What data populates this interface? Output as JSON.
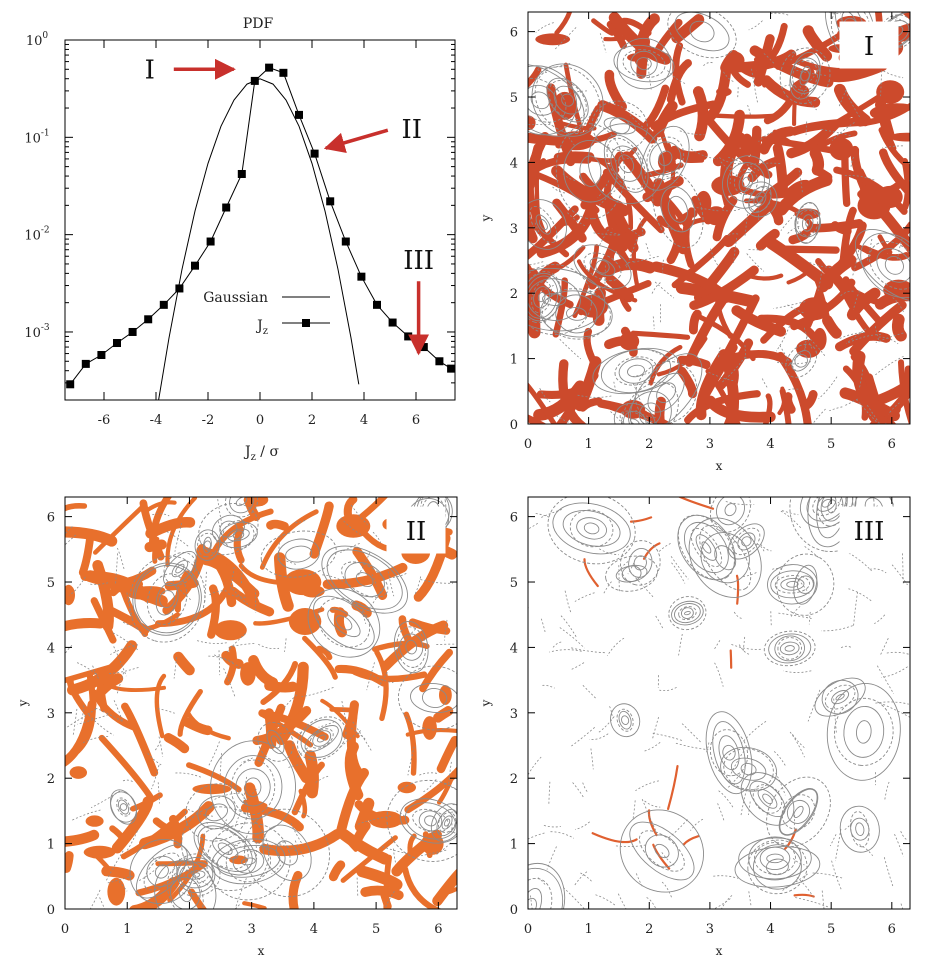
{
  "chart_data": [
    {
      "type": "line",
      "title": "PDF",
      "xlabel": "J_z / σ",
      "ylabel": "",
      "xlim": [
        -7.5,
        7.5
      ],
      "ylim": [
        0.0002,
        1
      ],
      "log_y": true,
      "grid": false,
      "legend_position": "center",
      "x_ticks": [
        "-6",
        "-4",
        "-2",
        "0",
        "2",
        "4",
        "6"
      ],
      "y_ticks": [
        {
          "value": 0.001,
          "base": "10",
          "exp": "-3"
        },
        {
          "value": 0.01,
          "base": "10",
          "exp": "-2"
        },
        {
          "value": 0.1,
          "base": "10",
          "exp": "-1"
        },
        {
          "value": 1,
          "base": "10",
          "exp": "0"
        }
      ],
      "series": [
        {
          "name": "Gaussian",
          "marker": "none",
          "x": [
            -3.9,
            -3.5,
            -3,
            -2.5,
            -2,
            -1.5,
            -1,
            -0.5,
            0,
            0.5,
            1,
            1.5,
            2,
            2.5,
            3,
            3.5,
            3.8
          ],
          "y": [
            0.0002,
            0.00087,
            0.0044,
            0.0175,
            0.054,
            0.13,
            0.242,
            0.352,
            0.399,
            0.352,
            0.242,
            0.13,
            0.054,
            0.0175,
            0.0044,
            0.00087,
            0.00029
          ]
        },
        {
          "name": "J",
          "name_sub": "z",
          "marker": "square",
          "x": [
            -7.3,
            -6.7,
            -6.1,
            -5.5,
            -4.9,
            -4.3,
            -3.7,
            -3.1,
            -2.5,
            -1.9,
            -1.3,
            -0.7,
            -0.2,
            0.35,
            0.9,
            1.5,
            2.1,
            2.7,
            3.3,
            3.9,
            4.5,
            5.1,
            5.7,
            6.3,
            6.9,
            7.35
          ],
          "y": [
            0.00029,
            0.00047,
            0.00058,
            0.00077,
            0.001,
            0.00135,
            0.0019,
            0.0028,
            0.0048,
            0.0085,
            0.019,
            0.042,
            0.38,
            0.52,
            0.46,
            0.17,
            0.068,
            0.022,
            0.0085,
            0.0037,
            0.0019,
            0.00125,
            0.0009,
            0.0007,
            0.0005,
            0.00042
          ]
        }
      ],
      "annotations": [
        {
          "label": "I",
          "x": -0.7,
          "y": 0.5,
          "color": "#c8302c"
        },
        {
          "label": "II",
          "x": 2.3,
          "y": 0.085,
          "color": "#c8302c"
        },
        {
          "label": "III",
          "x": 6.1,
          "y": 0.00055,
          "color": "#c8302c"
        }
      ]
    },
    {
      "type": "heatmap",
      "label": "I",
      "xlabel": "x",
      "ylabel": "y",
      "xlim": [
        0,
        6.3
      ],
      "ylim": [
        0,
        6.3
      ],
      "x_ticks": [
        "0",
        "1",
        "2",
        "3",
        "4",
        "5",
        "6"
      ],
      "y_ticks": [
        "0",
        "1",
        "2",
        "3",
        "4",
        "5",
        "6"
      ],
      "fill_color": "#cc4a2c",
      "fill_density": 0.55,
      "contour_color": "#8a8a8a"
    },
    {
      "type": "heatmap",
      "label": "II",
      "xlabel": "x",
      "ylabel": "y",
      "xlim": [
        0,
        6.3
      ],
      "ylim": [
        0,
        6.3
      ],
      "x_ticks": [
        "0",
        "1",
        "2",
        "3",
        "4",
        "5",
        "6"
      ],
      "y_ticks": [
        "0",
        "1",
        "2",
        "3",
        "4",
        "5",
        "6"
      ],
      "fill_color": "#e8702c",
      "fill_density": 0.35,
      "contour_color": "#8a8a8a"
    },
    {
      "type": "heatmap",
      "label": "III",
      "xlabel": "x",
      "ylabel": "y",
      "xlim": [
        0,
        6.3
      ],
      "ylim": [
        0,
        6.3
      ],
      "x_ticks": [
        "0",
        "1",
        "2",
        "3",
        "4",
        "5",
        "6"
      ],
      "y_ticks": [
        "0",
        "1",
        "2",
        "3",
        "4",
        "5",
        "6"
      ],
      "fill_color": "#e06030",
      "fill_density": 0.03,
      "contour_color": "#8a8a8a"
    }
  ]
}
